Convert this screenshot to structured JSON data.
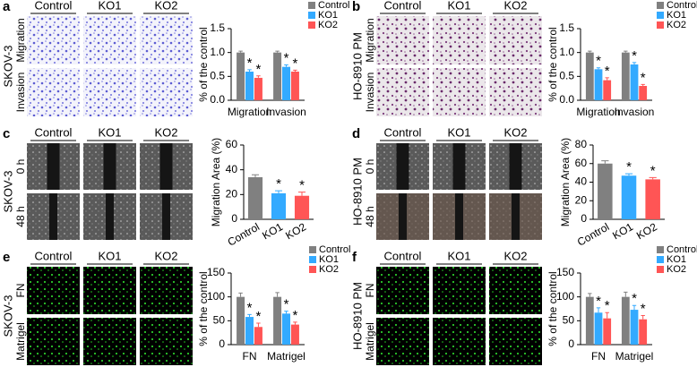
{
  "panels": [
    {
      "letter": "a",
      "cell_line": "SKOV-3",
      "columns": [
        "Control",
        "KO1",
        "KO2"
      ],
      "rows": [
        "Migration",
        "Invasion"
      ]
    },
    {
      "letter": "b",
      "cell_line": "HO-8910 PM",
      "columns": [
        "Control",
        "KO1",
        "KO2"
      ],
      "rows": [
        "Migration",
        "Invasion"
      ]
    },
    {
      "letter": "c",
      "cell_line": "SKOV-3",
      "columns": [
        "Control",
        "KO1",
        "KO2"
      ],
      "rows": [
        "0 h",
        "48 h"
      ]
    },
    {
      "letter": "d",
      "cell_line": "HO-8910 PM",
      "columns": [
        "Control",
        "KO1",
        "KO2"
      ],
      "rows": [
        "0 h",
        "48 h"
      ]
    },
    {
      "letter": "e",
      "cell_line": "SKOV-3",
      "columns": [
        "Control",
        "KO1",
        "KO2"
      ],
      "rows": [
        "FN",
        "Matrigel"
      ]
    },
    {
      "letter": "f",
      "cell_line": "HO-8910 PM",
      "columns": [
        "Control",
        "KO1",
        "KO2"
      ],
      "rows": [
        "FN",
        "Matrigel"
      ]
    }
  ],
  "chart_data": [
    {
      "type": "bar",
      "ylabel": "% of the control",
      "categories": [
        "Migration",
        "Invasion"
      ],
      "legend": "upper right",
      "ylim": [
        0,
        1.5
      ],
      "yticks": [
        {
          "value": 0,
          "label": "0.0"
        },
        {
          "value": 0.5,
          "label": "0.5"
        },
        {
          "value": 1,
          "label": "1.0"
        },
        {
          "value": 1.5,
          "label": "1.5"
        }
      ],
      "series": [
        {
          "name": "Control",
          "color": "#808080",
          "values": [
            1.0,
            1.0
          ],
          "errors": [
            0.03,
            0.03
          ]
        },
        {
          "name": "KO1",
          "color": "#33aaff",
          "values": [
            0.6,
            0.7
          ],
          "errors": [
            0.04,
            0.04
          ],
          "annotations": [
            "*",
            "*"
          ]
        },
        {
          "name": "KO2",
          "color": "#ff5555",
          "values": [
            0.47,
            0.6
          ],
          "errors": [
            0.04,
            0.03
          ],
          "annotations": [
            "*",
            "*"
          ]
        }
      ]
    },
    {
      "type": "bar",
      "ylabel": "% of the control",
      "categories": [
        "Migration",
        "Invasion"
      ],
      "legend": "upper right",
      "ylim": [
        0,
        1.5
      ],
      "yticks": [
        {
          "value": 0,
          "label": "0.0"
        },
        {
          "value": 0.5,
          "label": "0.5"
        },
        {
          "value": 1,
          "label": "1.0"
        },
        {
          "value": 1.5,
          "label": "1.5"
        }
      ],
      "series": [
        {
          "name": "Control",
          "color": "#808080",
          "values": [
            1.0,
            1.0
          ],
          "errors": [
            0.03,
            0.03
          ]
        },
        {
          "name": "KO1",
          "color": "#33aaff",
          "values": [
            0.65,
            0.75
          ],
          "errors": [
            0.03,
            0.04
          ],
          "annotations": [
            "*",
            "*"
          ]
        },
        {
          "name": "KO2",
          "color": "#ff5555",
          "values": [
            0.42,
            0.3
          ],
          "errors": [
            0.05,
            0.03
          ],
          "annotations": [
            "*",
            "*"
          ]
        }
      ]
    },
    {
      "type": "bar",
      "ylabel": "Migration Area (%)",
      "categories": [
        "Control",
        "KO1",
        "KO2"
      ],
      "values": [
        34,
        21,
        19
      ],
      "errors": [
        2,
        2,
        3
      ],
      "colors": [
        "#808080",
        "#33aaff",
        "#ff5555"
      ],
      "annotations": [
        null,
        "*",
        "*"
      ],
      "ylim": [
        0,
        60
      ],
      "yticks": [
        0,
        20,
        40,
        60
      ]
    },
    {
      "type": "bar",
      "ylabel": "Migration Area (%)",
      "categories": [
        "Control",
        "KO1",
        "KO2"
      ],
      "values": [
        60,
        47,
        43
      ],
      "errors": [
        3,
        2,
        2
      ],
      "colors": [
        "#808080",
        "#33aaff",
        "#ff5555"
      ],
      "annotations": [
        null,
        "*",
        "*"
      ],
      "ylim": [
        0,
        80
      ],
      "yticks": [
        0,
        20,
        40,
        60,
        80
      ]
    },
    {
      "type": "bar",
      "ylabel": "% of the control",
      "categories": [
        "FN",
        "Matrigel"
      ],
      "legend": "upper right",
      "ylim": [
        0,
        150
      ],
      "yticks": [
        0,
        50,
        100,
        150
      ],
      "series": [
        {
          "name": "Control",
          "color": "#808080",
          "values": [
            100,
            100
          ],
          "errors": [
            8,
            9
          ]
        },
        {
          "name": "KO1",
          "color": "#33aaff",
          "values": [
            58,
            65
          ],
          "errors": [
            5,
            5
          ],
          "annotations": [
            "*",
            "*"
          ]
        },
        {
          "name": "KO2",
          "color": "#ff5555",
          "values": [
            37,
            42
          ],
          "errors": [
            8,
            5
          ],
          "annotations": [
            "*",
            "*"
          ]
        }
      ]
    },
    {
      "type": "bar",
      "ylabel": "% of the control",
      "categories": [
        "FN",
        "Matrigel"
      ],
      "legend": "upper right",
      "ylim": [
        0,
        150
      ],
      "yticks": [
        0,
        50,
        100,
        150
      ],
      "series": [
        {
          "name": "Control",
          "color": "#808080",
          "values": [
            100,
            100
          ],
          "errors": [
            7,
            10
          ]
        },
        {
          "name": "KO1",
          "color": "#33aaff",
          "values": [
            67,
            73
          ],
          "errors": [
            10,
            9
          ],
          "annotations": [
            "*",
            "*"
          ]
        },
        {
          "name": "KO2",
          "color": "#ff5555",
          "values": [
            55,
            53
          ],
          "errors": [
            12,
            8
          ],
          "annotations": [
            "*",
            "*"
          ]
        }
      ]
    }
  ]
}
